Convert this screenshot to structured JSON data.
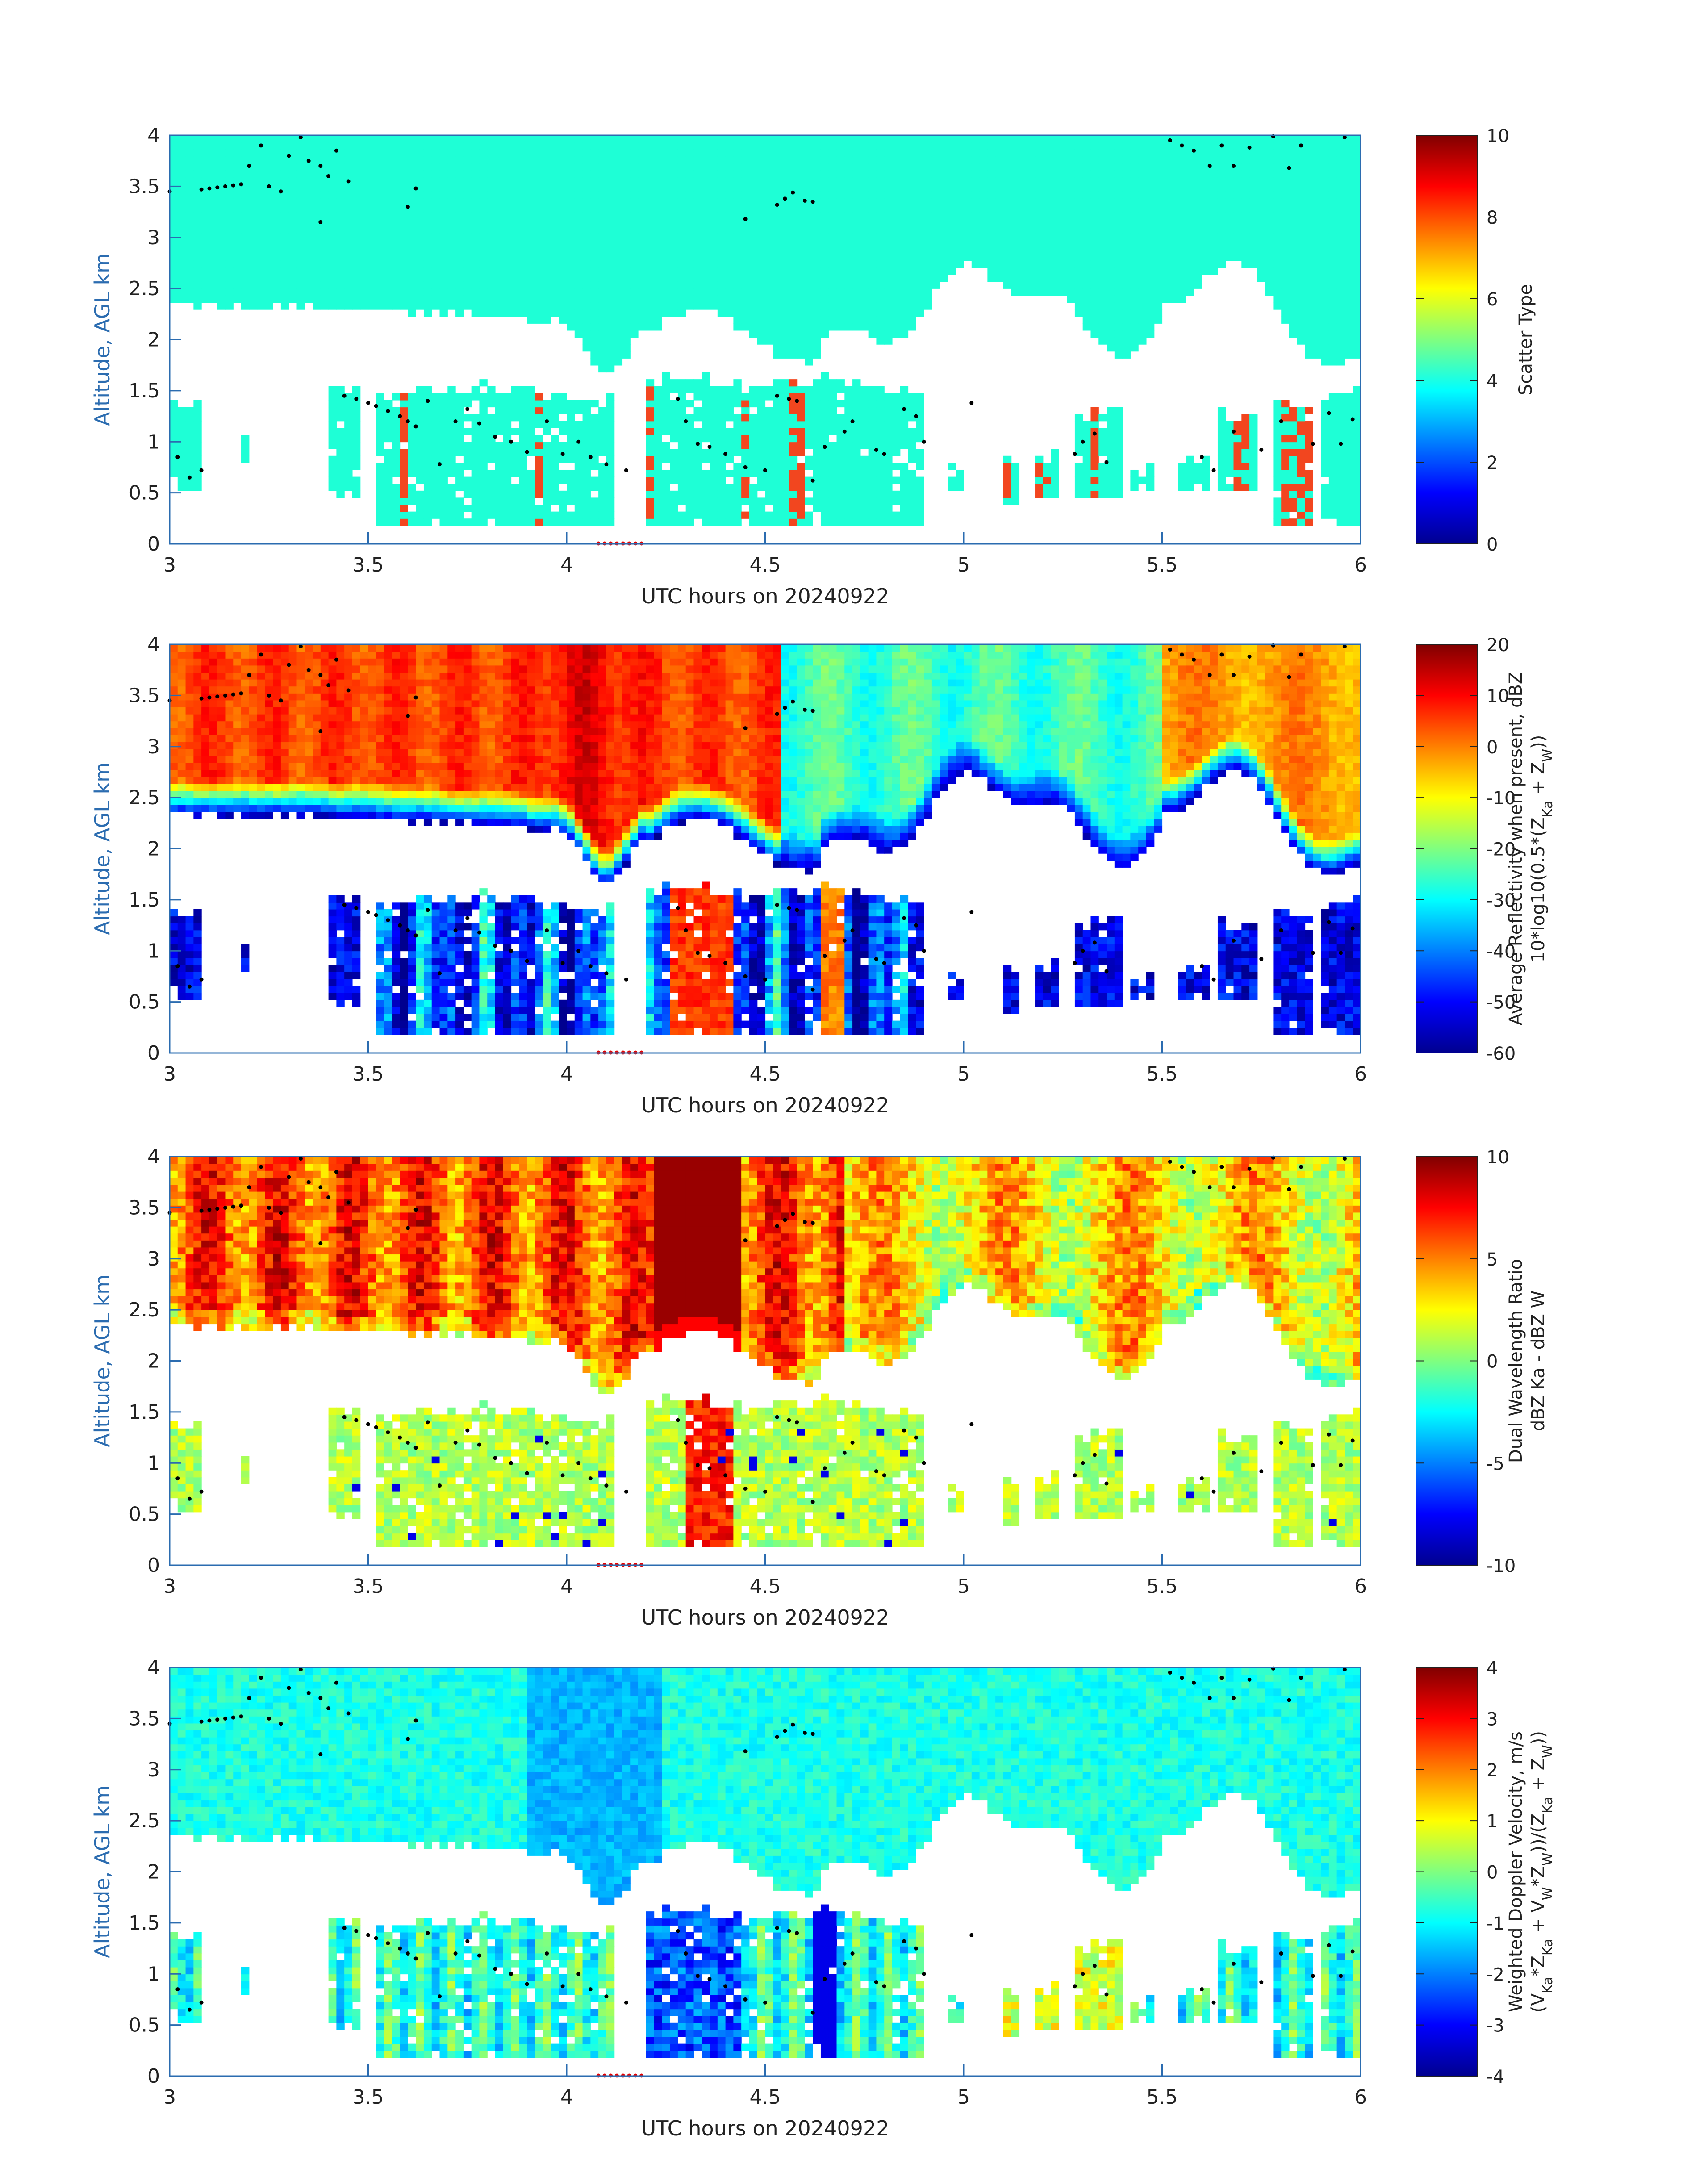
{
  "chart_data": [
    {
      "type": "heatmap",
      "id": "scatter-type",
      "xlabel": "UTC hours on 20240922",
      "ylabel": "Altitude, AGL km",
      "xlim": [
        3,
        6
      ],
      "ylim": [
        0,
        4
      ],
      "xticks": [
        "3",
        "3.5",
        "4",
        "4.5",
        "5",
        "5.5",
        "6"
      ],
      "yticks": [
        "0",
        "0.5",
        "1",
        "1.5",
        "2",
        "2.5",
        "3",
        "3.5",
        "4"
      ],
      "colorbar": {
        "label_lines": [
          "Scatter Type"
        ],
        "range": [
          0,
          10
        ],
        "ticks": [
          "0",
          "2",
          "4",
          "6",
          "8",
          "10"
        ]
      },
      "colors": {
        "field": "#1effd6",
        "accent": "#f2461f"
      }
    },
    {
      "type": "heatmap",
      "id": "reflectivity",
      "xlabel": "UTC hours on 20240922",
      "ylabel": "Altitude, AGL km",
      "xlim": [
        3,
        6
      ],
      "ylim": [
        0,
        4
      ],
      "xticks": [
        "3",
        "3.5",
        "4",
        "4.5",
        "5",
        "5.5",
        "6"
      ],
      "yticks": [
        "0",
        "0.5",
        "1",
        "1.5",
        "2",
        "2.5",
        "3",
        "3.5",
        "4"
      ],
      "colorbar": {
        "label_lines": [
          "Average Reflectivity when present, dBZ",
          "10*log10(0.5*(Z_Ka + Z_W))"
        ],
        "range": [
          -60,
          20
        ],
        "ticks": [
          "-60",
          "-50",
          "-40",
          "-30",
          "-20",
          "-10",
          "0",
          "10",
          "20"
        ]
      }
    },
    {
      "type": "heatmap",
      "id": "dwr",
      "xlabel": "UTC hours on 20240922",
      "ylabel": "Altitude, AGL km",
      "xlim": [
        3,
        6
      ],
      "ylim": [
        0,
        4
      ],
      "xticks": [
        "3",
        "3.5",
        "4",
        "4.5",
        "5",
        "5.5",
        "6"
      ],
      "yticks": [
        "0",
        "0.5",
        "1",
        "1.5",
        "2",
        "2.5",
        "3",
        "3.5",
        "4"
      ],
      "colorbar": {
        "label_lines": [
          "Dual Wavelength Ratio",
          "dBZ Ka - dBZ W"
        ],
        "range": [
          -10,
          10
        ],
        "ticks": [
          "-10",
          "-5",
          "0",
          "5",
          "10"
        ]
      }
    },
    {
      "type": "heatmap",
      "id": "velocity",
      "xlabel": "UTC hours on 20240922",
      "ylabel": "Altitude, AGL km",
      "xlim": [
        3,
        6
      ],
      "ylim": [
        0,
        4
      ],
      "xticks": [
        "3",
        "3.5",
        "4",
        "4.5",
        "5",
        "5.5",
        "6"
      ],
      "yticks": [
        "0",
        "0.5",
        "1",
        "1.5",
        "2",
        "2.5",
        "3",
        "3.5",
        "4"
      ],
      "colorbar": {
        "label_lines": [
          "Weighted Doppler Velocity, m/s",
          "(V_Ka*Z_Ka + V_W*Z_W))/(Z_Ka + Z_W))"
        ],
        "range": [
          -4,
          4
        ],
        "ticks": [
          "-4",
          "-3",
          "-2",
          "-1",
          "0",
          "1",
          "2",
          "3",
          "4"
        ]
      }
    }
  ]
}
